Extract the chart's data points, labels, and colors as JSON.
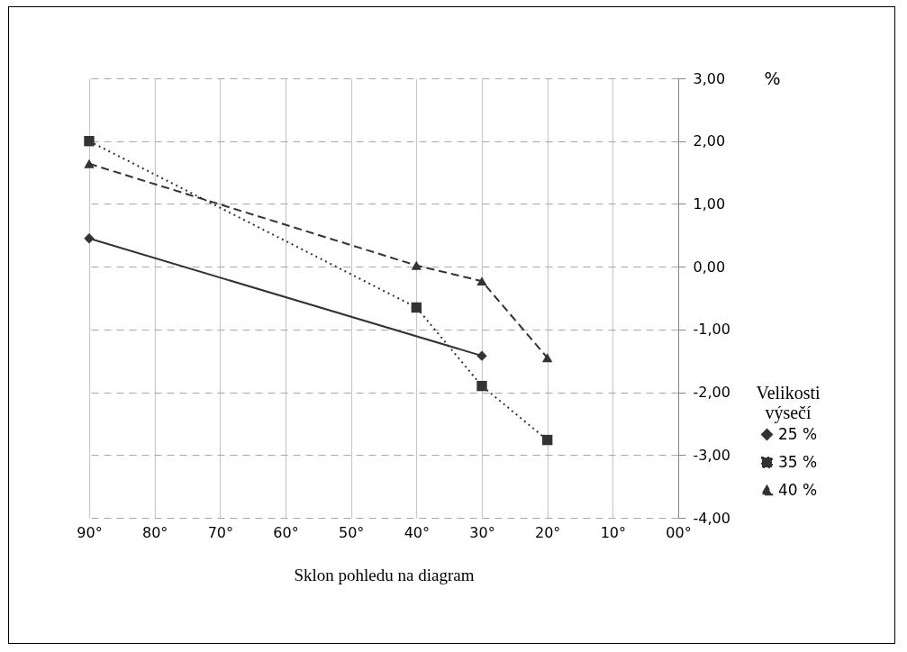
{
  "chart_data": {
    "type": "line",
    "xlabel": "Sklon pohledu na diagram",
    "ylabel": "%",
    "legend_title": "Velikosti výsečí",
    "series": [
      {
        "name": "25 %",
        "color": "#333333",
        "marker": "diamond",
        "line_style": "solid",
        "x": [
          90,
          30
        ],
        "values": [
          0.45,
          -1.42
        ]
      },
      {
        "name": "35 %",
        "color": "#333333",
        "marker": "square",
        "line_style": "dotted",
        "x": [
          90,
          40,
          30,
          20
        ],
        "values": [
          2.0,
          -0.65,
          -1.9,
          -2.76
        ]
      },
      {
        "name": "40 %",
        "color": "#333333",
        "marker": "triangle",
        "line_style": "dashed",
        "x": [
          90,
          40,
          30,
          20
        ],
        "values": [
          1.64,
          0.02,
          -0.23,
          -1.45
        ]
      }
    ],
    "xlim": [
      90,
      0
    ],
    "xticks": [
      {
        "value": 90,
        "label": "90°"
      },
      {
        "value": 80,
        "label": "80°"
      },
      {
        "value": 70,
        "label": "70°"
      },
      {
        "value": 60,
        "label": "60°"
      },
      {
        "value": 50,
        "label": "50°"
      },
      {
        "value": 40,
        "label": "40°"
      },
      {
        "value": 30,
        "label": "30°"
      },
      {
        "value": 20,
        "label": "20°"
      },
      {
        "value": 10,
        "label": "10°"
      },
      {
        "value": 0,
        "label": "00°"
      }
    ],
    "ylim": [
      -4,
      3
    ],
    "yticks": [
      {
        "value": 3,
        "label": "3,00"
      },
      {
        "value": 2,
        "label": "2,00"
      },
      {
        "value": 1,
        "label": "1,00"
      },
      {
        "value": 0,
        "label": "0,00"
      },
      {
        "value": -1,
        "label": "-1,00"
      },
      {
        "value": -2,
        "label": "-2,00"
      },
      {
        "value": -3,
        "label": "-3,00"
      },
      {
        "value": -4,
        "label": "-4,00"
      }
    ],
    "grid": true,
    "legend": "bottom right"
  }
}
